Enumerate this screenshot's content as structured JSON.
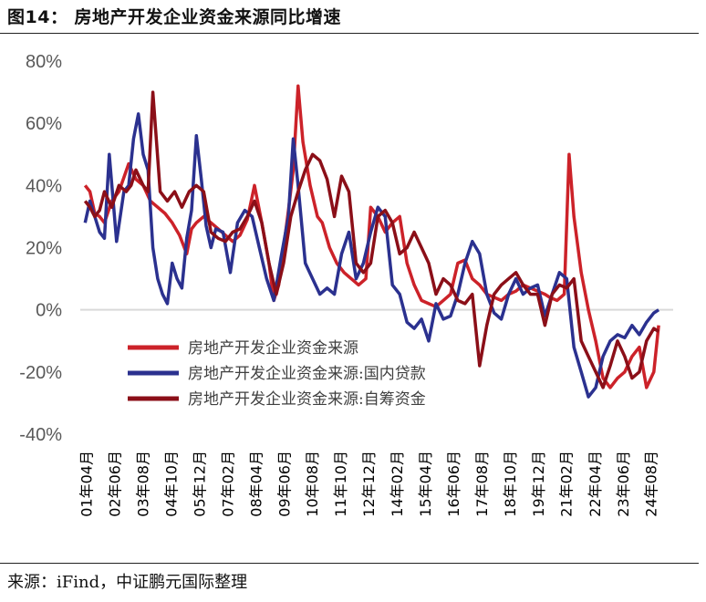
{
  "figure": {
    "title": "图14： 房地产开发企业资金来源同比增速",
    "source": "来源：iFind，中证鹏元国际整理"
  },
  "chart_data": {
    "type": "line",
    "title": "",
    "xlabel": "",
    "ylabel": "",
    "ylim": [
      -40,
      80
    ],
    "yticks": [
      "80%",
      "60%",
      "40%",
      "20%",
      "0%",
      "-20%",
      "-40%"
    ],
    "ytick_values": [
      80,
      60,
      40,
      20,
      0,
      -20,
      -40
    ],
    "x_tick_labels": [
      "01年04月",
      "02年06月",
      "03年08月",
      "04年10月",
      "05年12月",
      "07年02月",
      "08年04月",
      "09年06月",
      "10年08月",
      "11年10月",
      "12年12月",
      "14年02月",
      "15年04月",
      "16年06月",
      "17年08月",
      "18年10月",
      "19年12月",
      "21年02月",
      "22年04月",
      "23年06月",
      "24年08月"
    ],
    "x_tick_positions": [
      2001.25,
      2002.42,
      2003.58,
      2004.75,
      2005.92,
      2007.08,
      2008.25,
      2009.42,
      2010.58,
      2011.75,
      2012.92,
      2014.08,
      2015.25,
      2016.42,
      2017.58,
      2018.75,
      2019.92,
      2021.08,
      2022.25,
      2023.42,
      2024.58
    ],
    "xlim": [
      2001.0,
      2025.5
    ],
    "grid": false,
    "legend_position": "bottom-left",
    "series": [
      {
        "name": "房地产开发企业资金来源",
        "color": "#cc2229",
        "x": [
          2001.2,
          2001.4,
          2001.6,
          2001.8,
          2002.0,
          2002.3,
          2002.6,
          2003.0,
          2003.3,
          2003.6,
          2003.9,
          2004.2,
          2004.5,
          2004.8,
          2005.1,
          2005.4,
          2005.6,
          2005.8,
          2006.1,
          2006.4,
          2006.7,
          2007.0,
          2007.3,
          2007.6,
          2007.9,
          2008.2,
          2008.5,
          2008.8,
          2009.0,
          2009.2,
          2009.4,
          2009.6,
          2009.8,
          2010.0,
          2010.2,
          2010.5,
          2010.8,
          2011.0,
          2011.3,
          2011.6,
          2011.9,
          2012.2,
          2012.5,
          2012.8,
          2013.0,
          2013.3,
          2013.6,
          2013.9,
          2014.2,
          2014.5,
          2014.8,
          2015.1,
          2015.4,
          2015.7,
          2016.0,
          2016.3,
          2016.6,
          2016.9,
          2017.2,
          2017.5,
          2017.8,
          2018.1,
          2018.4,
          2018.7,
          2019.0,
          2019.3,
          2019.6,
          2019.9,
          2020.2,
          2020.4,
          2020.7,
          2021.0,
          2021.2,
          2021.4,
          2021.7,
          2022.0,
          2022.3,
          2022.6,
          2022.9,
          2023.2,
          2023.5,
          2023.8,
          2024.1,
          2024.4,
          2024.7,
          2024.9
        ],
        "values": [
          40,
          38,
          31,
          30,
          28,
          35,
          38,
          47,
          42,
          40,
          35,
          33,
          31,
          28,
          24,
          18,
          26,
          28,
          30,
          28,
          26,
          24,
          22,
          24,
          29,
          40,
          28,
          15,
          3,
          8,
          20,
          32,
          45,
          72,
          54,
          40,
          30,
          28,
          20,
          15,
          12,
          10,
          8,
          10,
          33,
          30,
          25,
          28,
          30,
          15,
          8,
          3,
          2,
          1,
          3,
          5,
          15,
          16,
          10,
          8,
          5,
          4,
          3,
          5,
          6,
          8,
          7,
          6,
          5,
          4,
          3,
          5,
          50,
          30,
          12,
          0,
          -10,
          -22,
          -25,
          -22,
          -20,
          -15,
          -12,
          -25,
          -20,
          -5
        ],
        "legend_label": "房地产开发企业资金来源"
      },
      {
        "name": "房地产开发企业资金来源:国内贷款",
        "color": "#2b318f",
        "x": [
          2001.2,
          2001.4,
          2001.6,
          2001.8,
          2002.0,
          2002.2,
          2002.5,
          2002.8,
          2003.0,
          2003.2,
          2003.4,
          2003.6,
          2003.8,
          2004.0,
          2004.2,
          2004.4,
          2004.6,
          2004.8,
          2005.0,
          2005.2,
          2005.4,
          2005.6,
          2005.8,
          2006.0,
          2006.2,
          2006.4,
          2006.6,
          2006.9,
          2007.2,
          2007.5,
          2007.8,
          2008.1,
          2008.4,
          2008.7,
          2009.0,
          2009.3,
          2009.6,
          2009.8,
          2010.0,
          2010.3,
          2010.6,
          2010.9,
          2011.2,
          2011.5,
          2011.8,
          2012.1,
          2012.4,
          2012.7,
          2013.0,
          2013.3,
          2013.6,
          2013.9,
          2014.2,
          2014.5,
          2014.8,
          2015.1,
          2015.4,
          2015.7,
          2016.0,
          2016.3,
          2016.6,
          2016.9,
          2017.2,
          2017.5,
          2017.8,
          2018.1,
          2018.4,
          2018.7,
          2019.0,
          2019.3,
          2019.6,
          2019.9,
          2020.2,
          2020.5,
          2020.8,
          2021.1,
          2021.4,
          2021.7,
          2022.0,
          2022.3,
          2022.6,
          2022.9,
          2023.2,
          2023.5,
          2023.8,
          2024.1,
          2024.4,
          2024.7,
          2024.9
        ],
        "values": [
          28,
          35,
          30,
          25,
          23,
          50,
          22,
          38,
          40,
          55,
          63,
          50,
          45,
          20,
          10,
          5,
          2,
          15,
          10,
          7,
          23,
          32,
          56,
          42,
          27,
          20,
          26,
          25,
          12,
          28,
          32,
          30,
          20,
          10,
          3,
          17,
          30,
          55,
          40,
          15,
          10,
          5,
          7,
          5,
          18,
          25,
          10,
          15,
          25,
          33,
          30,
          8,
          5,
          -4,
          -6,
          -3,
          -10,
          2,
          -3,
          -2,
          5,
          15,
          22,
          18,
          5,
          -1,
          -3,
          5,
          10,
          5,
          7,
          8,
          -2,
          5,
          12,
          10,
          -12,
          -20,
          -28,
          -25,
          -15,
          -10,
          -8,
          -9,
          -5,
          -8,
          -4,
          -1,
          0
        ]
      },
      {
        "name": "房地产开发企业资金来源:自筹资金",
        "color": "#8b0f18",
        "x": [
          2001.2,
          2001.4,
          2001.6,
          2001.8,
          2002.0,
          2002.3,
          2002.6,
          2002.9,
          2003.1,
          2003.3,
          2003.6,
          2003.8,
          2004.0,
          2004.3,
          2004.6,
          2004.9,
          2005.2,
          2005.5,
          2005.8,
          2006.1,
          2006.4,
          2006.7,
          2007.0,
          2007.3,
          2007.6,
          2007.9,
          2008.2,
          2008.5,
          2008.8,
          2009.1,
          2009.4,
          2009.7,
          2010.0,
          2010.3,
          2010.6,
          2010.9,
          2011.2,
          2011.5,
          2011.8,
          2012.1,
          2012.4,
          2012.7,
          2013.0,
          2013.3,
          2013.6,
          2013.9,
          2014.2,
          2014.5,
          2014.8,
          2015.1,
          2015.4,
          2015.7,
          2016.0,
          2016.3,
          2016.6,
          2016.9,
          2017.2,
          2017.5,
          2017.8,
          2018.1,
          2018.4,
          2018.7,
          2019.0,
          2019.3,
          2019.6,
          2019.9,
          2020.2,
          2020.5,
          2020.8,
          2021.1,
          2021.4,
          2021.7,
          2022.0,
          2022.3,
          2022.6,
          2022.9,
          2023.2,
          2023.5,
          2023.8,
          2024.1,
          2024.4,
          2024.7,
          2024.9
        ],
        "values": [
          35,
          33,
          30,
          32,
          38,
          33,
          40,
          38,
          40,
          45,
          40,
          38,
          70,
          38,
          35,
          38,
          33,
          38,
          40,
          38,
          25,
          23,
          22,
          25,
          26,
          30,
          35,
          28,
          15,
          5,
          15,
          30,
          38,
          45,
          50,
          48,
          42,
          30,
          43,
          38,
          15,
          12,
          15,
          30,
          32,
          28,
          18,
          20,
          25,
          20,
          15,
          5,
          10,
          8,
          3,
          2,
          5,
          -18,
          -5,
          5,
          8,
          10,
          12,
          8,
          5,
          5,
          -5,
          5,
          8,
          7,
          10,
          -10,
          -15,
          -20,
          -25,
          -18,
          -10,
          -15,
          -22,
          -20,
          -10,
          -6,
          -7
        ]
      }
    ]
  }
}
